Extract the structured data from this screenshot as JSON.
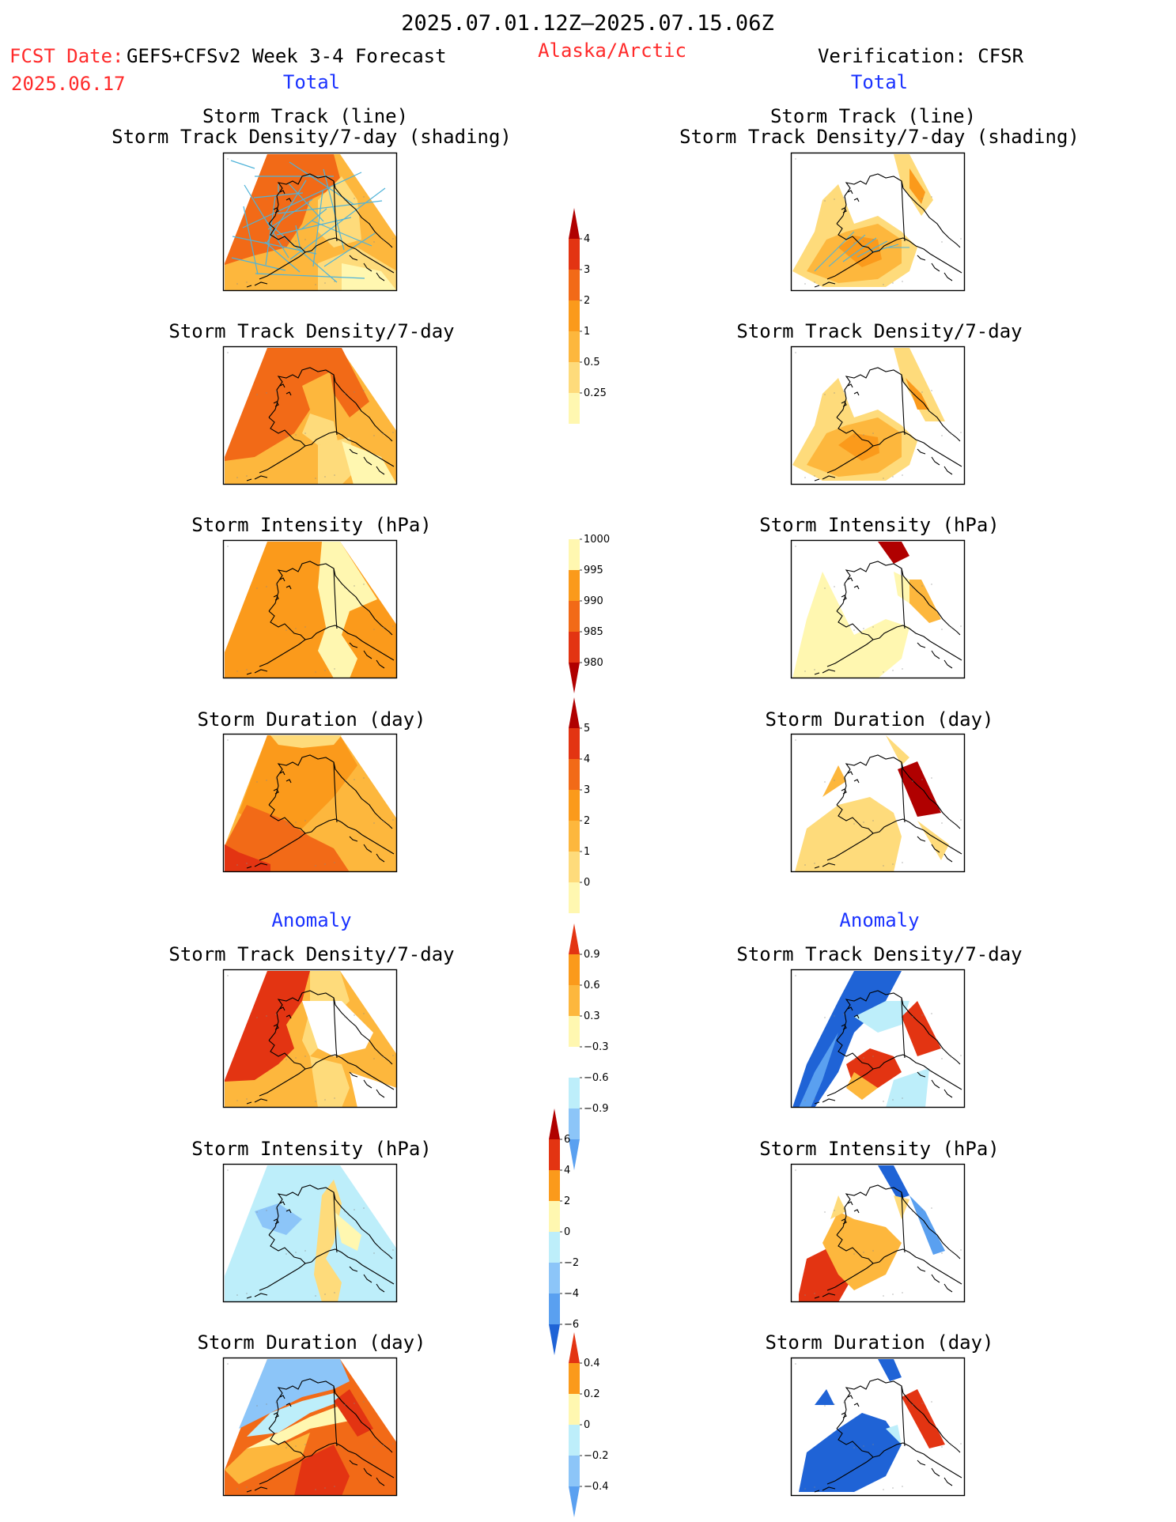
{
  "header": {
    "period": "2025.07.01.12Z–2025.07.15.06Z",
    "fcst_label": "FCST Date:",
    "model": "GEFS+CFSv2 Week 3-4 Forecast",
    "fcst_date": "2025.06.17",
    "region": "Alaska/Arctic",
    "verification": "Verification: CFSR"
  },
  "section_labels": {
    "total": "Total",
    "anomaly": "Anomaly"
  },
  "titles": {
    "track_line": "Storm Track (line)",
    "track_density_shading": "Storm Track Density/7-day (shading)",
    "track_density": "Storm Track Density/7-day",
    "intensity": "Storm Intensity (hPa)",
    "duration": "Storm Duration (day)"
  },
  "colors": {
    "pale": "#fff7b0",
    "light": "#fedb7b",
    "amber": "#fdb73d",
    "orange": "#fb9a1b",
    "dkorange": "#f26a17",
    "red": "#e33412",
    "dkred": "#b00000",
    "ltblue": "#bdeefa",
    "midblue": "#8cc5f8",
    "blue": "#5aa0f0",
    "dkblue": "#1f63d6",
    "track": "#4fb3d9",
    "title_red": "#ff2a2a",
    "label_blue": "#1a32ff"
  },
  "chart_data": [
    {
      "type": "heatmap",
      "panel": "Forecast Total",
      "title": "Storm Track Density/7-day",
      "colorbar": [
        "0.25",
        "0.5",
        "1",
        "2",
        "3",
        "4"
      ]
    },
    {
      "type": "heatmap",
      "panel": "Forecast Total",
      "title": "Storm Intensity (hPa)",
      "colorbar": [
        "1000",
        "995",
        "990",
        "985",
        "980"
      ]
    },
    {
      "type": "heatmap",
      "panel": "Forecast Total",
      "title": "Storm Duration (day)",
      "colorbar": [
        "0",
        "1",
        "2",
        "3",
        "4",
        "5"
      ]
    },
    {
      "type": "heatmap",
      "panel": "Forecast Anomaly",
      "title": "Storm Track Density/7-day",
      "colorbar": [
        "−0.9",
        "−0.6",
        "−0.3",
        "0.3",
        "0.6",
        "0.9"
      ]
    },
    {
      "type": "heatmap",
      "panel": "Forecast Anomaly",
      "title": "Storm Intensity (hPa)",
      "colorbar": [
        "−6",
        "−4",
        "−2",
        "0",
        "2",
        "4",
        "6"
      ]
    },
    {
      "type": "heatmap",
      "panel": "Forecast Anomaly",
      "title": "Storm Duration (day)",
      "colorbar": [
        "−0.4",
        "−0.2",
        "0",
        "0.2",
        "0.4"
      ]
    }
  ],
  "colorbars": {
    "density": [
      "4",
      "3",
      "2",
      "1",
      "0.5",
      "0.25"
    ],
    "intensity": [
      "1000",
      "995",
      "990",
      "985",
      "980"
    ],
    "duration": [
      "5",
      "4",
      "3",
      "2",
      "1",
      "0"
    ],
    "density_anom": [
      "0.9",
      "0.6",
      "0.3",
      "−0.3",
      "−0.6",
      "−0.9"
    ],
    "intensity_anom": [
      "6",
      "4",
      "2",
      "0",
      "−2",
      "−4",
      "−6"
    ],
    "duration_anom": [
      "0.4",
      "0.2",
      "0",
      "−0.2",
      "−0.4"
    ]
  }
}
